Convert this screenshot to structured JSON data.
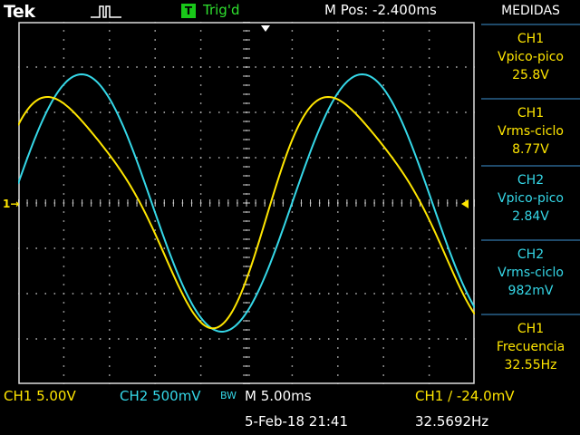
{
  "header": {
    "brand": "Tek",
    "trigger_badge": "T",
    "trigger_status": "Trig'd",
    "position": "M Pos: -2.400ms"
  },
  "markers": {
    "channel_ref": "1→",
    "trigger_arrow": "▼"
  },
  "panel": {
    "title": "MEDIDAS",
    "measurements": [
      {
        "channel": "CH1",
        "type": "Vpico-pico",
        "value": "25.8V",
        "color": "#ffe600"
      },
      {
        "channel": "CH1",
        "type": "Vrms-ciclo",
        "value": "8.77V",
        "color": "#ffe600"
      },
      {
        "channel": "CH2",
        "type": "Vpico-pico",
        "value": "2.84V",
        "color": "#35d8e8"
      },
      {
        "channel": "CH2",
        "type": "Vrms-ciclo",
        "value": "982mV",
        "color": "#35d8e8"
      },
      {
        "channel": "CH1",
        "type": "Frecuencia",
        "value": "32.55Hz",
        "color": "#ffe600"
      }
    ]
  },
  "status": {
    "ch1_scale": "CH1  5.00V",
    "ch2_scale": "CH2  500mV",
    "bw_limit": "BW",
    "time_scale": "M 5.00ms",
    "trigger": "CH1 ∕ -24.0mV",
    "datetime": "5-Feb-18 21:41",
    "frequency": "32.5692Hz"
  },
  "colors": {
    "ch1": "#ffe600",
    "ch2": "#35d8e8",
    "trigger_ok": "#2ee02e",
    "background": "#000000"
  },
  "waveforms": {
    "time_per_div_ms": 5.0,
    "ch1": {
      "volts_per_div": 5.0,
      "peak_to_peak_V": 25.8,
      "frequency_Hz": 32.55
    },
    "ch2": {
      "volts_per_div": 0.5,
      "peak_to_peak_V": 2.84
    }
  }
}
